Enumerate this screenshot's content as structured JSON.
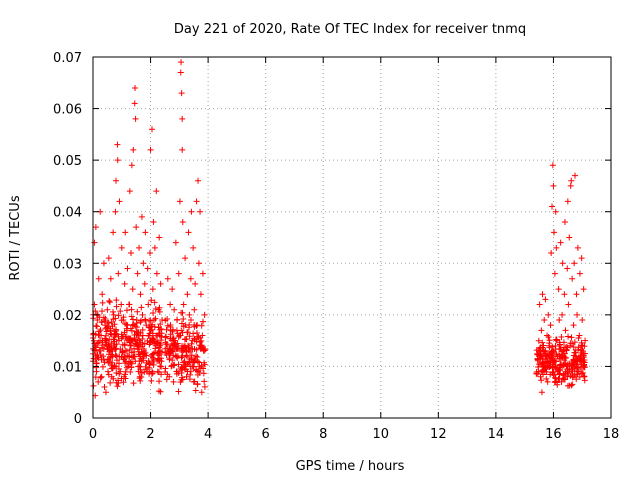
{
  "chart_data": {
    "type": "scatter",
    "title": "Day 221 of 2020, Rate Of TEC Index for receiver tnmq",
    "xlabel": "GPS time / hours",
    "ylabel": "ROTI / TECUs",
    "xlim": [
      0,
      18
    ],
    "ylim": [
      0,
      0.07
    ],
    "x_ticks": [
      "0",
      "2",
      "4",
      "6",
      "8",
      "10",
      "12",
      "14",
      "16",
      "18"
    ],
    "y_ticks": [
      "0",
      "0.01",
      "0.02",
      "0.03",
      "0.04",
      "0.05",
      "0.06",
      "0.07"
    ],
    "grid": true,
    "marker": "+",
    "marker_color": "#ff0000",
    "series": [
      {
        "points": [
          [
            0.0,
            0.011
          ],
          [
            0.05,
            0.022
          ],
          [
            0.05,
            0.034
          ],
          [
            0.08,
            0.014
          ],
          [
            0.1,
            0.037
          ],
          [
            0.12,
            0.009
          ],
          [
            0.15,
            0.019
          ],
          [
            0.18,
            0.007
          ],
          [
            0.2,
            0.027
          ],
          [
            0.22,
            0.013
          ],
          [
            0.25,
            0.04
          ],
          [
            0.28,
            0.016
          ],
          [
            0.3,
            0.008
          ],
          [
            0.32,
            0.024
          ],
          [
            0.35,
            0.012
          ],
          [
            0.38,
            0.03
          ],
          [
            0.4,
            0.006
          ],
          [
            0.42,
            0.018
          ],
          [
            0.45,
            0.005
          ],
          [
            0.48,
            0.014
          ],
          [
            0.5,
            0.021
          ],
          [
            0.52,
            0.009
          ],
          [
            0.55,
            0.031
          ],
          [
            0.58,
            0.011
          ],
          [
            0.6,
            0.017
          ],
          [
            0.62,
            0.027
          ],
          [
            0.65,
            0.008
          ],
          [
            0.68,
            0.013
          ],
          [
            0.7,
            0.036
          ],
          [
            0.72,
            0.02
          ],
          [
            0.75,
            0.01
          ],
          [
            0.78,
            0.04
          ],
          [
            0.8,
            0.046
          ],
          [
            0.82,
            0.012
          ],
          [
            0.85,
            0.053
          ],
          [
            0.86,
            0.05
          ],
          [
            0.88,
            0.028
          ],
          [
            0.9,
            0.015
          ],
          [
            0.92,
            0.042
          ],
          [
            0.95,
            0.009
          ],
          [
            0.98,
            0.022
          ],
          [
            1.0,
            0.033
          ],
          [
            1.02,
            0.013
          ],
          [
            1.05,
            0.019
          ],
          [
            1.08,
            0.008
          ],
          [
            1.1,
            0.026
          ],
          [
            1.12,
            0.036
          ],
          [
            1.15,
            0.011
          ],
          [
            1.18,
            0.017
          ],
          [
            1.2,
            0.029
          ],
          [
            1.22,
            0.01
          ],
          [
            1.25,
            0.022
          ],
          [
            1.28,
            0.044
          ],
          [
            1.3,
            0.014
          ],
          [
            1.32,
            0.032
          ],
          [
            1.35,
            0.049
          ],
          [
            1.38,
            0.025
          ],
          [
            1.4,
            0.052
          ],
          [
            1.42,
            0.012
          ],
          [
            1.45,
            0.061
          ],
          [
            1.46,
            0.064
          ],
          [
            1.48,
            0.058
          ],
          [
            1.5,
            0.037
          ],
          [
            1.52,
            0.019
          ],
          [
            1.55,
            0.028
          ],
          [
            1.58,
            0.009
          ],
          [
            1.6,
            0.033
          ],
          [
            1.62,
            0.015
          ],
          [
            1.65,
            0.024
          ],
          [
            1.68,
            0.011
          ],
          [
            1.7,
            0.039
          ],
          [
            1.72,
            0.02
          ],
          [
            1.75,
            0.03
          ],
          [
            1.78,
            0.013
          ],
          [
            1.8,
            0.026
          ],
          [
            1.82,
            0.036
          ],
          [
            1.85,
            0.018
          ],
          [
            1.88,
            0.009
          ],
          [
            1.9,
            0.029
          ],
          [
            1.92,
            0.022
          ],
          [
            1.95,
            0.016
          ],
          [
            1.98,
            0.032
          ],
          [
            2.0,
            0.052
          ],
          [
            2.02,
            0.012
          ],
          [
            2.05,
            0.056
          ],
          [
            2.08,
            0.025
          ],
          [
            2.1,
            0.038
          ],
          [
            2.12,
            0.019
          ],
          [
            2.15,
            0.033
          ],
          [
            2.18,
            0.014
          ],
          [
            2.2,
            0.044
          ],
          [
            2.22,
            0.028
          ],
          [
            2.25,
            0.009
          ],
          [
            2.28,
            0.021
          ],
          [
            2.3,
            0.035
          ],
          [
            2.32,
            0.016
          ],
          [
            2.35,
            0.026
          ],
          [
            2.38,
            0.011
          ],
          [
            2.4,
            0.019
          ],
          [
            2.6,
            0.027
          ],
          [
            2.62,
            0.013
          ],
          [
            2.65,
            0.008
          ],
          [
            2.68,
            0.022
          ],
          [
            2.7,
            0.017
          ],
          [
            2.72,
            0.01
          ],
          [
            2.75,
            0.025
          ],
          [
            2.78,
            0.013
          ],
          [
            2.8,
            0.007
          ],
          [
            2.82,
            0.021
          ],
          [
            2.85,
            0.015
          ],
          [
            2.88,
            0.034
          ],
          [
            2.9,
            0.009
          ],
          [
            2.92,
            0.019
          ],
          [
            2.95,
            0.012
          ],
          [
            2.98,
            0.028
          ],
          [
            3.0,
            0.016
          ],
          [
            3.02,
            0.042
          ],
          [
            3.05,
            0.067
          ],
          [
            3.06,
            0.069
          ],
          [
            3.08,
            0.063
          ],
          [
            3.1,
            0.058
          ],
          [
            3.1,
            0.052
          ],
          [
            3.12,
            0.038
          ],
          [
            3.15,
            0.022
          ],
          [
            3.18,
            0.011
          ],
          [
            3.2,
            0.031
          ],
          [
            3.22,
            0.018
          ],
          [
            3.25,
            0.008
          ],
          [
            3.28,
            0.024
          ],
          [
            3.3,
            0.014
          ],
          [
            3.32,
            0.036
          ],
          [
            3.35,
            0.02
          ],
          [
            3.38,
            0.01
          ],
          [
            3.4,
            0.027
          ],
          [
            3.42,
            0.04
          ],
          [
            3.45,
            0.015
          ],
          [
            3.48,
            0.033
          ],
          [
            3.5,
            0.007
          ],
          [
            3.52,
            0.021
          ],
          [
            3.55,
            0.026
          ],
          [
            3.58,
            0.012
          ],
          [
            3.6,
            0.042
          ],
          [
            3.62,
            0.018
          ],
          [
            3.65,
            0.046
          ],
          [
            3.68,
            0.03
          ],
          [
            3.7,
            0.01
          ],
          [
            3.72,
            0.04
          ],
          [
            3.75,
            0.024
          ],
          [
            3.78,
            0.005
          ],
          [
            3.8,
            0.016
          ],
          [
            3.82,
            0.028
          ],
          [
            3.85,
            0.013
          ],
          [
            3.88,
            0.02
          ],
          [
            15.5,
            0.012
          ],
          [
            15.52,
            0.022
          ],
          [
            15.55,
            0.008
          ],
          [
            15.58,
            0.017
          ],
          [
            15.6,
            0.005
          ],
          [
            15.62,
            0.024
          ],
          [
            15.65,
            0.013
          ],
          [
            15.68,
            0.019
          ],
          [
            15.7,
            0.009
          ],
          [
            15.72,
            0.023
          ],
          [
            15.75,
            0.011
          ],
          [
            15.78,
            0.016
          ],
          [
            15.8,
            0.007
          ],
          [
            15.82,
            0.02
          ],
          [
            15.85,
            0.014
          ],
          [
            15.88,
            0.01
          ],
          [
            15.9,
            0.018
          ],
          [
            15.92,
            0.032
          ],
          [
            15.95,
            0.041
          ],
          [
            15.98,
            0.049
          ],
          [
            16.0,
            0.045
          ],
          [
            16.02,
            0.036
          ],
          [
            16.05,
            0.028
          ],
          [
            16.08,
            0.04
          ],
          [
            16.1,
            0.033
          ],
          [
            16.12,
            0.015
          ],
          [
            16.15,
            0.009
          ],
          [
            16.18,
            0.025
          ],
          [
            16.2,
            0.019
          ],
          [
            16.22,
            0.012
          ],
          [
            16.25,
            0.034
          ],
          [
            16.28,
            0.007
          ],
          [
            16.3,
            0.02
          ],
          [
            16.32,
            0.03
          ],
          [
            16.35,
            0.013
          ],
          [
            16.38,
            0.024
          ],
          [
            16.4,
            0.038
          ],
          [
            16.42,
            0.017
          ],
          [
            16.45,
            0.01
          ],
          [
            16.48,
            0.029
          ],
          [
            16.5,
            0.042
          ],
          [
            16.52,
            0.022
          ],
          [
            16.55,
            0.035
          ],
          [
            16.58,
            0.014
          ],
          [
            16.6,
            0.045
          ],
          [
            16.62,
            0.046
          ],
          [
            16.65,
            0.027
          ],
          [
            16.68,
            0.008
          ],
          [
            16.7,
            0.018
          ],
          [
            16.72,
            0.03
          ],
          [
            16.75,
            0.047
          ],
          [
            16.78,
            0.012
          ],
          [
            16.8,
            0.024
          ],
          [
            16.82,
            0.02
          ],
          [
            16.85,
            0.033
          ],
          [
            16.88,
            0.009
          ],
          [
            16.9,
            0.016
          ],
          [
            16.92,
            0.028
          ],
          [
            16.95,
            0.011
          ],
          [
            16.98,
            0.031
          ],
          [
            17.0,
            0.019
          ],
          [
            17.02,
            0.013
          ],
          [
            17.05,
            0.025
          ],
          [
            17.08,
            0.008
          ],
          [
            17.1,
            0.015
          ]
        ]
      }
    ],
    "clusters": [
      {
        "x_range": [
          0.0,
          2.4
        ],
        "y_mean": 0.014,
        "y_spread": 0.007,
        "y_min": 0.004,
        "count": 380
      },
      {
        "x_range": [
          2.5,
          3.9
        ],
        "y_mean": 0.013,
        "y_spread": 0.006,
        "y_min": 0.004,
        "count": 190
      },
      {
        "x_range": [
          15.4,
          17.1
        ],
        "y_mean": 0.011,
        "y_spread": 0.004,
        "y_min": 0.005,
        "count": 260
      }
    ]
  }
}
